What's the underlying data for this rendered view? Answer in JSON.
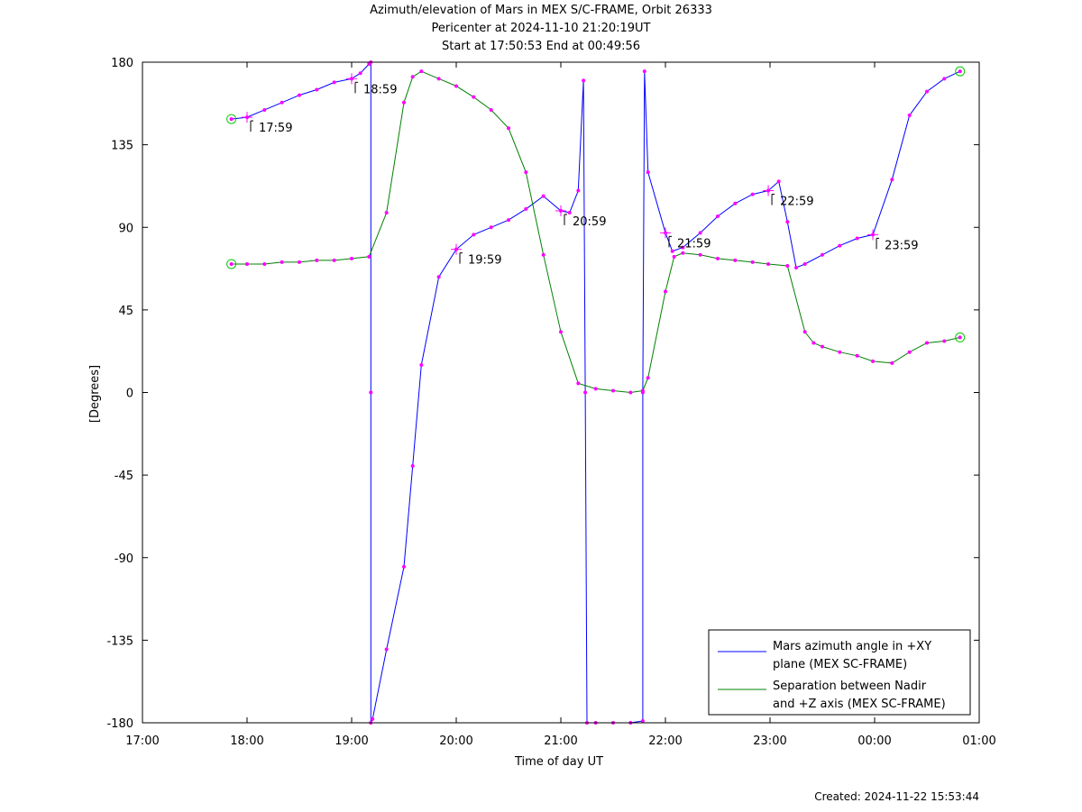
{
  "chart_data": {
    "type": "line",
    "title": "Azimuth/elevation of Mars in MEX S/C-FRAME,  Orbit 26333",
    "subtitle_lines": [
      "Pericenter at 2024-11-10 21:20:19UT",
      "Start at 17:50:53 End at 00:49:56"
    ],
    "xlabel": "Time of day UT",
    "ylabel": "[Degrees]",
    "xlim": [
      "17:00",
      "01:00"
    ],
    "ylim": [
      -180,
      180
    ],
    "x_ticks": [
      "17:00",
      "18:00",
      "19:00",
      "20:00",
      "21:00",
      "22:00",
      "23:00",
      "00:00",
      "01:00"
    ],
    "y_ticks": [
      180,
      135,
      90,
      45,
      0,
      -45,
      -90,
      -135,
      -180
    ],
    "grid": false,
    "legend_position": "bottom-right",
    "series": [
      {
        "name": "Mars azimuth angle in +XY plane (MEX SC-FRAME)",
        "legend_lines": [
          "Mars azimuth angle in +XY",
          "plane (MEX SC-FRAME)"
        ],
        "color": "#0000ff",
        "points": [
          [
            "17:51",
            149
          ],
          [
            "18:00",
            150
          ],
          [
            "18:10",
            154
          ],
          [
            "18:20",
            158
          ],
          [
            "18:30",
            162
          ],
          [
            "18:40",
            165
          ],
          [
            "18:50",
            169
          ],
          [
            "19:00",
            171
          ],
          [
            "19:05",
            174
          ],
          [
            "19:10",
            179
          ],
          [
            "19:11",
            180
          ],
          [
            "19:11",
            0
          ],
          [
            "19:11",
            -180
          ],
          [
            "19:12",
            -178
          ],
          [
            "19:20",
            -140
          ],
          [
            "19:30",
            -95
          ],
          [
            "19:35",
            -40
          ],
          [
            "19:40",
            15
          ],
          [
            "19:50",
            63
          ],
          [
            "20:00",
            78
          ],
          [
            "20:10",
            86
          ],
          [
            "20:20",
            90
          ],
          [
            "20:30",
            94
          ],
          [
            "20:40",
            100
          ],
          [
            "20:50",
            107
          ],
          [
            "21:00",
            99
          ],
          [
            "21:05",
            98
          ],
          [
            "21:10",
            110
          ],
          [
            "21:13",
            170
          ],
          [
            "21:14",
            0
          ],
          [
            "21:15",
            -180
          ],
          [
            "21:20",
            -180
          ],
          [
            "21:30",
            -180
          ],
          [
            "21:40",
            -180
          ],
          [
            "21:47",
            -179
          ],
          [
            "21:47",
            0
          ],
          [
            "21:48",
            175
          ],
          [
            "21:50",
            120
          ],
          [
            "22:00",
            87
          ],
          [
            "22:04",
            77
          ],
          [
            "22:10",
            79
          ],
          [
            "22:20",
            87
          ],
          [
            "22:30",
            96
          ],
          [
            "22:40",
            103
          ],
          [
            "22:50",
            108
          ],
          [
            "22:59",
            110
          ],
          [
            "23:05",
            115
          ],
          [
            "23:10",
            93
          ],
          [
            "23:15",
            68
          ],
          [
            "23:20",
            70
          ],
          [
            "23:30",
            75
          ],
          [
            "23:40",
            80
          ],
          [
            "23:50",
            84
          ],
          [
            "23:59",
            86
          ],
          [
            "00:10",
            116
          ],
          [
            "00:20",
            151
          ],
          [
            "00:30",
            164
          ],
          [
            "00:40",
            171
          ],
          [
            "00:49",
            175
          ]
        ]
      },
      {
        "name": "Separation between Nadir and +Z axis (MEX SC-FRAME)",
        "legend_lines": [
          "Separation between Nadir",
          "and +Z axis (MEX SC-FRAME)"
        ],
        "color": "#008000",
        "points": [
          [
            "17:51",
            70
          ],
          [
            "18:00",
            70
          ],
          [
            "18:10",
            70
          ],
          [
            "18:20",
            71
          ],
          [
            "18:30",
            71
          ],
          [
            "18:40",
            72
          ],
          [
            "18:50",
            72
          ],
          [
            "19:00",
            73
          ],
          [
            "19:10",
            74
          ],
          [
            "19:20",
            98
          ],
          [
            "19:30",
            158
          ],
          [
            "19:35",
            172
          ],
          [
            "19:40",
            175
          ],
          [
            "19:50",
            171
          ],
          [
            "20:00",
            167
          ],
          [
            "20:10",
            161
          ],
          [
            "20:20",
            154
          ],
          [
            "20:30",
            144
          ],
          [
            "20:40",
            120
          ],
          [
            "20:50",
            75
          ],
          [
            "21:00",
            33
          ],
          [
            "21:10",
            5
          ],
          [
            "21:20",
            2
          ],
          [
            "21:30",
            1
          ],
          [
            "21:40",
            0
          ],
          [
            "21:47",
            1
          ],
          [
            "21:50",
            8
          ],
          [
            "22:00",
            55
          ],
          [
            "22:05",
            74
          ],
          [
            "22:10",
            76
          ],
          [
            "22:20",
            75
          ],
          [
            "22:30",
            73
          ],
          [
            "22:40",
            72
          ],
          [
            "22:50",
            71
          ],
          [
            "22:59",
            70
          ],
          [
            "23:10",
            69
          ],
          [
            "23:20",
            33
          ],
          [
            "23:25",
            27
          ],
          [
            "23:30",
            25
          ],
          [
            "23:40",
            22
          ],
          [
            "23:50",
            20
          ],
          [
            "23:59",
            17
          ],
          [
            "00:10",
            16
          ],
          [
            "00:20",
            22
          ],
          [
            "00:30",
            27
          ],
          [
            "00:40",
            28
          ],
          [
            "00:49",
            30
          ]
        ]
      }
    ],
    "annotations": [
      {
        "text": "17:59",
        "x": "18:00",
        "y": 150
      },
      {
        "text": "18:59",
        "x": "19:00",
        "y": 171
      },
      {
        "text": "19:59",
        "x": "20:00",
        "y": 78
      },
      {
        "text": "20:59",
        "x": "21:00",
        "y": 99
      },
      {
        "text": "21:59",
        "x": "22:00",
        "y": 87
      },
      {
        "text": "22:59",
        "x": "22:59",
        "y": 110
      },
      {
        "text": "23:59",
        "x": "23:59",
        "y": 86
      }
    ]
  },
  "footer": {
    "created": "Created: 2024-11-22 15:53:44"
  }
}
